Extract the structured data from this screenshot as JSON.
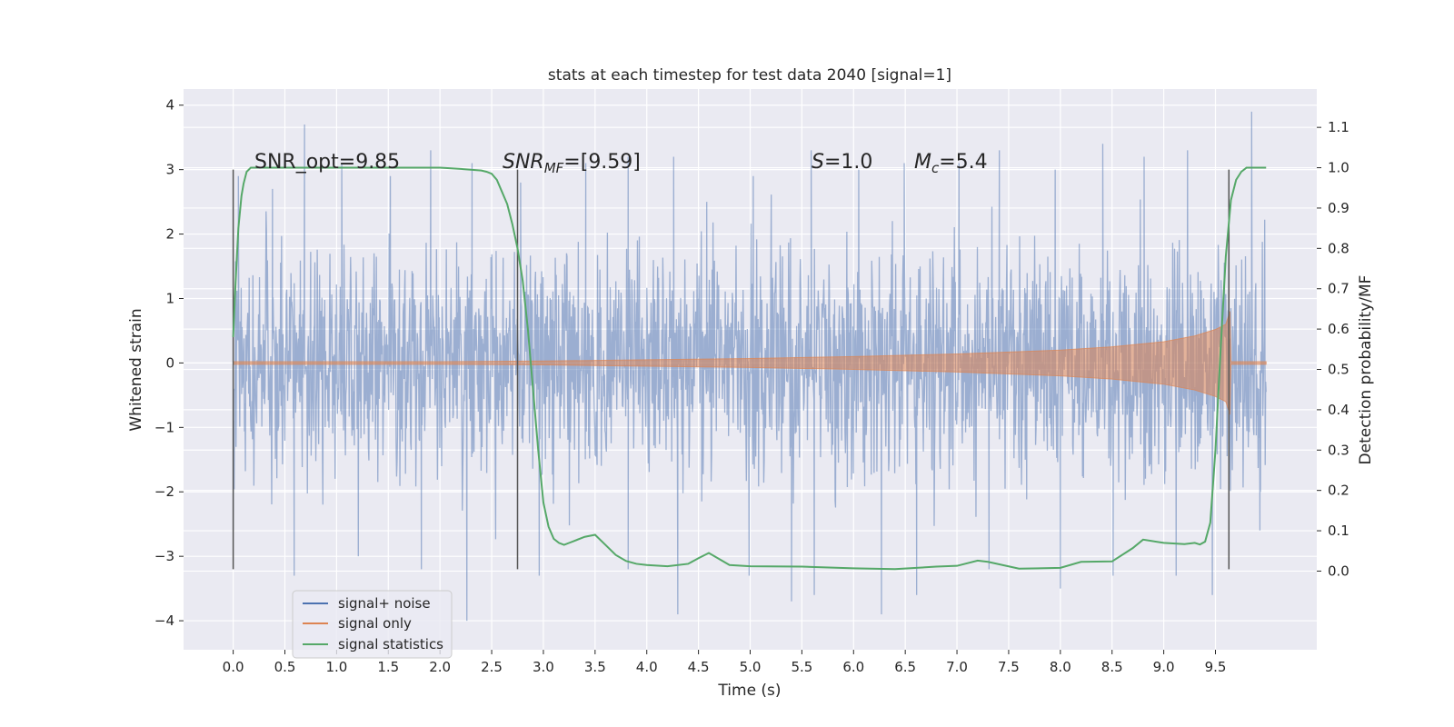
{
  "chart_data": {
    "type": "line",
    "title": "stats at each timestep for test data 2040 [signal=1]",
    "xlabel": "Time (s)",
    "ylabel": "Whitened strain",
    "y2label": "Detection probability/MF",
    "xlim": [
      -0.48,
      10.48
    ],
    "ylim": [
      -4.45,
      4.25
    ],
    "y2lim": [
      -0.195,
      1.195
    ],
    "x_ticks": [
      "0.0",
      "0.5",
      "1.0",
      "1.5",
      "2.0",
      "2.5",
      "3.0",
      "3.5",
      "4.0",
      "4.5",
      "5.0",
      "5.5",
      "6.0",
      "6.5",
      "7.0",
      "7.5",
      "8.0",
      "8.5",
      "9.0",
      "9.5"
    ],
    "y_ticks": [
      "4",
      "3",
      "2",
      "1",
      "0",
      "−1",
      "−2",
      "−3",
      "−4"
    ],
    "y2_ticks": [
      "1.1",
      "1.0",
      "0.9",
      "0.8",
      "0.7",
      "0.6",
      "0.5",
      "0.4",
      "0.3",
      "0.2",
      "0.1",
      "0.0"
    ],
    "grid": true,
    "legend_placement": "lower-left",
    "annotations": {
      "snr_opt": "SNR_opt=9.85",
      "snr_mf_sym": "SNR",
      "snr_mf_sub": "MF",
      "snr_mf_val": "=[9.59]",
      "s_sym": "S",
      "s_val": "=1.0",
      "mc_sym": "M",
      "mc_sub": "c",
      "mc_val": "=5.4"
    },
    "vertical_markers": [
      0.0,
      2.75,
      9.63
    ],
    "series": [
      {
        "name": "signal+ noise",
        "color": "#4c72b0",
        "description_x_range": [
          0.0,
          9.99
        ],
        "peaks_top": [
          [
            0.05,
            2.9
          ],
          [
            0.38,
            2.7
          ],
          [
            0.69,
            3.7
          ],
          [
            1.05,
            3.1
          ],
          [
            1.52,
            2.9
          ],
          [
            1.91,
            3.3
          ],
          [
            2.31,
            3.1
          ],
          [
            2.78,
            2.8
          ],
          [
            3.41,
            3.1
          ],
          [
            3.82,
            3.2
          ],
          [
            4.26,
            3.2
          ],
          [
            4.58,
            2.5
          ],
          [
            5.03,
            2.9
          ],
          [
            5.59,
            3.3
          ],
          [
            6.05,
            3.0
          ],
          [
            6.49,
            3.1
          ],
          [
            7.02,
            3.1
          ],
          [
            7.41,
            3.3
          ],
          [
            7.95,
            3.0
          ],
          [
            8.41,
            3.4
          ],
          [
            8.81,
            3.2
          ],
          [
            9.23,
            3.3
          ],
          [
            9.63,
            2.8
          ],
          [
            9.85,
            3.9
          ]
        ],
        "peaks_bottom": [
          [
            0.0,
            -2.6
          ],
          [
            0.59,
            -3.3
          ],
          [
            1.21,
            -3.0
          ],
          [
            1.82,
            -3.2
          ],
          [
            2.26,
            -4.0
          ],
          [
            2.96,
            -3.3
          ],
          [
            3.82,
            -3.2
          ],
          [
            4.3,
            -3.9
          ],
          [
            4.99,
            -3.3
          ],
          [
            5.4,
            -3.7
          ],
          [
            5.62,
            -3.6
          ],
          [
            6.27,
            -3.9
          ],
          [
            6.61,
            -3.6
          ],
          [
            7.31,
            -3.2
          ],
          [
            8.0,
            -3.5
          ],
          [
            8.51,
            -3.3
          ],
          [
            9.12,
            -3.3
          ],
          [
            9.47,
            -3.6
          ],
          [
            9.93,
            -2.6
          ]
        ]
      },
      {
        "name": "signal only",
        "color": "#dd8452",
        "envelope": [
          [
            0.0,
            0.02
          ],
          [
            2.0,
            0.02
          ],
          [
            3.0,
            0.03
          ],
          [
            4.0,
            0.05
          ],
          [
            5.0,
            0.07
          ],
          [
            6.0,
            0.1
          ],
          [
            7.0,
            0.14
          ],
          [
            8.0,
            0.2
          ],
          [
            8.5,
            0.25
          ],
          [
            9.0,
            0.33
          ],
          [
            9.3,
            0.42
          ],
          [
            9.5,
            0.52
          ],
          [
            9.6,
            0.6
          ],
          [
            9.64,
            0.8
          ],
          [
            9.65,
            0.02
          ],
          [
            9.99,
            0.02
          ]
        ]
      },
      {
        "name": "signal statistics",
        "color": "#55a868",
        "axis": "right",
        "x": [
          0.0,
          0.02,
          0.05,
          0.08,
          0.1,
          0.13,
          0.17,
          0.25,
          0.4,
          0.6,
          1.0,
          1.5,
          2.0,
          2.2,
          2.4,
          2.45,
          2.5,
          2.55,
          2.6,
          2.65,
          2.7,
          2.75,
          2.8,
          2.85,
          2.9,
          2.95,
          3.0,
          3.05,
          3.1,
          3.15,
          3.2,
          3.25,
          3.3,
          3.4,
          3.5,
          3.6,
          3.7,
          3.8,
          3.9,
          4.0,
          4.2,
          4.4,
          4.5,
          4.6,
          4.7,
          4.8,
          5.0,
          5.5,
          6.0,
          6.4,
          6.8,
          7.0,
          7.2,
          7.3,
          7.6,
          8.0,
          8.2,
          8.5,
          8.7,
          8.8,
          9.0,
          9.2,
          9.3,
          9.35,
          9.4,
          9.45,
          9.5,
          9.55,
          9.6,
          9.65,
          9.7,
          9.75,
          9.8,
          9.9,
          9.99
        ],
        "y": [
          0.58,
          0.7,
          0.85,
          0.93,
          0.96,
          0.99,
          1.0,
          1.0,
          1.0,
          1.0,
          1.0,
          1.0,
          1.0,
          0.997,
          0.993,
          0.99,
          0.985,
          0.97,
          0.94,
          0.91,
          0.86,
          0.8,
          0.72,
          0.6,
          0.45,
          0.3,
          0.17,
          0.11,
          0.08,
          0.07,
          0.065,
          0.07,
          0.075,
          0.085,
          0.09,
          0.065,
          0.04,
          0.025,
          0.018,
          0.015,
          0.012,
          0.018,
          0.032,
          0.045,
          0.03,
          0.015,
          0.012,
          0.011,
          0.007,
          0.005,
          0.011,
          0.013,
          0.026,
          0.023,
          0.006,
          0.008,
          0.023,
          0.024,
          0.057,
          0.078,
          0.07,
          0.067,
          0.07,
          0.066,
          0.073,
          0.12,
          0.3,
          0.55,
          0.78,
          0.92,
          0.97,
          0.99,
          1.0,
          1.0,
          1.0
        ]
      }
    ]
  }
}
